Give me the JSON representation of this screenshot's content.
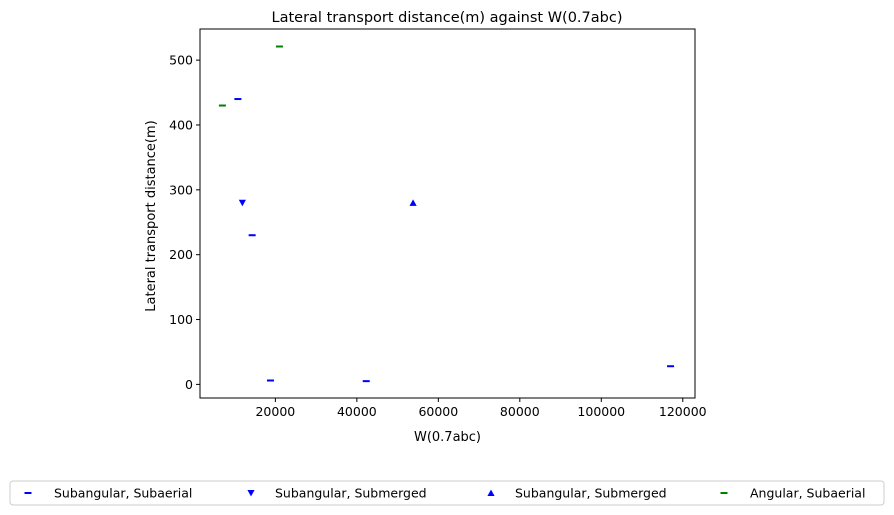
{
  "chart_data": {
    "type": "scatter",
    "title": "Lateral transport distance(m) against W(0.7abc)",
    "xlabel": "W(0.7abc)",
    "ylabel": "Lateral transport distance(m)",
    "xlim": [
      1500,
      123000
    ],
    "ylim": [
      -21,
      548
    ],
    "xticks": [
      20000,
      40000,
      60000,
      80000,
      100000,
      120000
    ],
    "yticks": [
      0,
      100,
      200,
      300,
      400,
      500
    ],
    "grid": false,
    "legend_placement": "below plot, single row",
    "series": [
      {
        "name": "Subangular, Subaerial",
        "marker": "hline",
        "color": "#0000ff",
        "points": [
          [
            10800,
            440
          ],
          [
            14300,
            230
          ],
          [
            18800,
            6
          ],
          [
            42300,
            5
          ],
          [
            117000,
            28
          ]
        ]
      },
      {
        "name": "Subangular, Submerged",
        "marker": "triangle-down",
        "color": "#0000ff",
        "points": [
          [
            11900,
            280
          ]
        ]
      },
      {
        "name": "Subangular, Submerged",
        "marker": "triangle-up",
        "color": "#0000ff",
        "points": [
          [
            53800,
            280
          ]
        ]
      },
      {
        "name": "Angular, Subaerial",
        "marker": "hline",
        "color": "#008000",
        "points": [
          [
            7000,
            430
          ],
          [
            21000,
            521
          ]
        ]
      }
    ]
  }
}
